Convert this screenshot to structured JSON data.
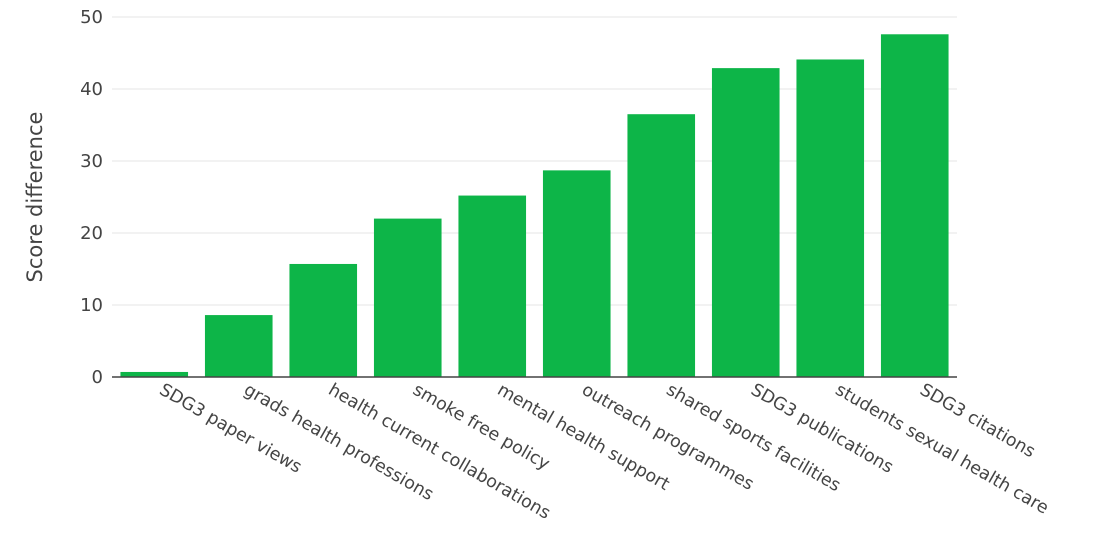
{
  "chart_data": {
    "type": "bar",
    "categories": [
      "SDG3 paper views",
      "grads health professions",
      "health current collaborations",
      "smoke free policy",
      "mental health support",
      "outreach programmes",
      "shared sports facilities",
      "SDG3 publications",
      "students sexual health care",
      "SDG3 citations"
    ],
    "values": [
      0.7,
      8.6,
      15.7,
      22.0,
      25.2,
      28.7,
      36.5,
      42.9,
      44.1,
      47.6
    ],
    "title": "",
    "xlabel": "",
    "ylabel": "Score difference",
    "ylim": [
      0,
      50
    ],
    "yticks": [
      0,
      10,
      20,
      30,
      40,
      50
    ],
    "grid": true,
    "bar_color": "#0db548",
    "legend": "none"
  }
}
